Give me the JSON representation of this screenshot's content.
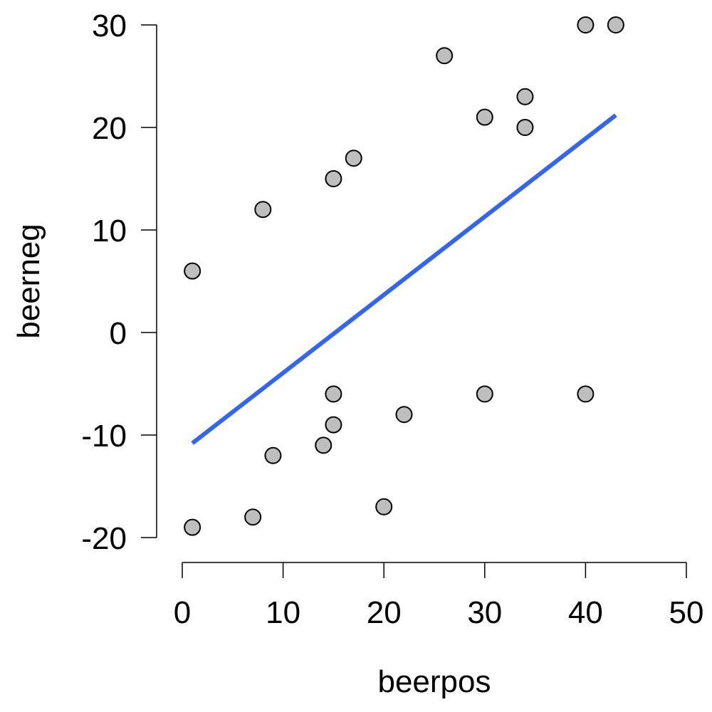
{
  "chart_data": {
    "type": "scatter",
    "title": "",
    "xlabel": "beerpos",
    "ylabel": "beerneg",
    "xlim": [
      0,
      50
    ],
    "ylim": [
      -20,
      30
    ],
    "x_ticks": [
      0,
      10,
      20,
      30,
      40,
      50
    ],
    "y_ticks": [
      -20,
      -10,
      0,
      10,
      20,
      30
    ],
    "grid": false,
    "legend": "none",
    "point_fill": "#bebebe",
    "point_stroke": "#000000",
    "fit_line": {
      "color": "#3366ee",
      "x": [
        1,
        43
      ],
      "y": [
        -10.8,
        21.2
      ]
    },
    "points": [
      {
        "x": 1,
        "y": 6
      },
      {
        "x": 1,
        "y": -19
      },
      {
        "x": 7,
        "y": -18
      },
      {
        "x": 8,
        "y": 12
      },
      {
        "x": 9,
        "y": -12
      },
      {
        "x": 14,
        "y": -11
      },
      {
        "x": 15,
        "y": 15
      },
      {
        "x": 15,
        "y": -6
      },
      {
        "x": 15,
        "y": -9
      },
      {
        "x": 17,
        "y": 17
      },
      {
        "x": 20,
        "y": -17
      },
      {
        "x": 22,
        "y": -8
      },
      {
        "x": 26,
        "y": 27
      },
      {
        "x": 30,
        "y": 21
      },
      {
        "x": 30,
        "y": -6
      },
      {
        "x": 34,
        "y": 23
      },
      {
        "x": 34,
        "y": 20
      },
      {
        "x": 40,
        "y": 30
      },
      {
        "x": 40,
        "y": -6
      },
      {
        "x": 43,
        "y": 30
      }
    ]
  }
}
